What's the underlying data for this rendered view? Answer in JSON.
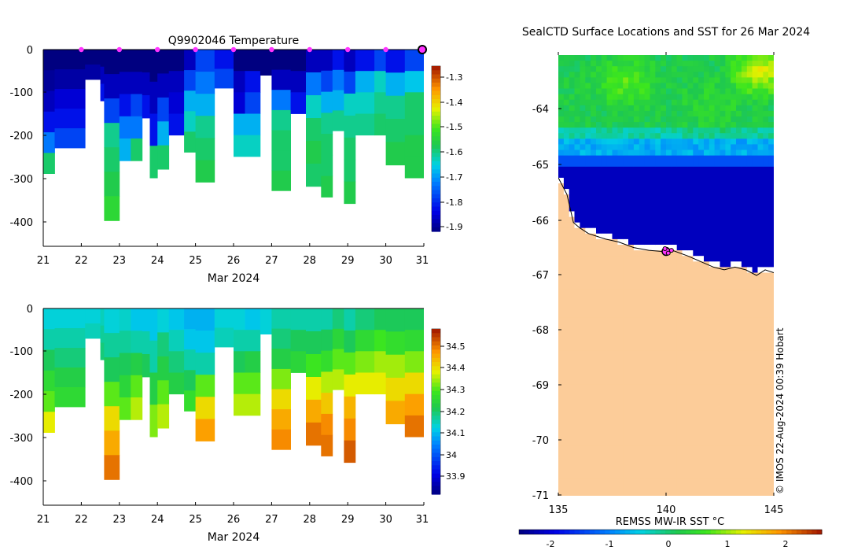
{
  "colors": {
    "background": "#ffffff",
    "axis": "#000000",
    "land": "#fccc99",
    "deep_blue": "#0033bb",
    "marker": "#ff33ff"
  },
  "temperature_panel": {
    "title": "Q9902046  Temperature",
    "xlabel": "Mar 2024",
    "x_ticks": [
      "21",
      "22",
      "23",
      "24",
      "25",
      "26",
      "27",
      "28",
      "29",
      "30",
      "31"
    ],
    "y_ticks": [
      "0",
      "-100",
      "-200",
      "-300",
      "-400"
    ],
    "colorbar_ticks": [
      "-1.3",
      "-1.4",
      "-1.5",
      "-1.6",
      "-1.7",
      "-1.8",
      "-1.9"
    ]
  },
  "salinity_panel": {
    "xlabel": "Mar 2024",
    "x_ticks": [
      "21",
      "22",
      "23",
      "24",
      "25",
      "26",
      "27",
      "28",
      "29",
      "30",
      "31"
    ],
    "y_ticks": [
      "0",
      "-100",
      "-200",
      "-300",
      "-400"
    ],
    "colorbar_ticks": [
      "34.5",
      "34.4",
      "34.3",
      "34.2",
      "34.1",
      "34",
      "33.9"
    ]
  },
  "map_panel": {
    "title": "SealCTD Surface Locations and SST for 26 Mar 2024",
    "y_ticks": [
      "-64",
      "-65",
      "-66",
      "-67",
      "-68",
      "-69",
      "-70",
      "-71"
    ],
    "x_ticks": [
      "135",
      "140",
      "145"
    ],
    "colorbar_label": "REMSS MW-IR SST °C",
    "colorbar_ticks": [
      "-2",
      "-1",
      "0",
      "1",
      "2"
    ],
    "credit": "© IMOS 22-Aug-2024 00:39 Hobart"
  },
  "chart_data": [
    {
      "type": "heatmap",
      "title": "Q9902046  Temperature",
      "xlabel": "Mar 2024",
      "ylabel": "",
      "x_unit": "day of March 2024",
      "xlim": [
        21,
        31
      ],
      "ylim": [
        -460,
        0
      ],
      "clim": [
        -1.95,
        -1.25
      ],
      "surface_marker_days": [
        22,
        23,
        24,
        25,
        26,
        27,
        28,
        29,
        30,
        31
      ],
      "profiles": [
        {
          "t": 21.0,
          "depth": 290,
          "v": [
            -1.95,
            -1.93,
            -1.9,
            -1.85,
            -1.75,
            -1.6
          ]
        },
        {
          "t": 21.3,
          "depth": 230,
          "v": [
            -1.95,
            -1.92,
            -1.88,
            -1.85,
            -1.8
          ]
        },
        {
          "t": 22.1,
          "depth": 70,
          "v": [
            -1.95,
            -1.92
          ]
        },
        {
          "t": 22.5,
          "depth": 120,
          "v": [
            -1.95,
            -1.9,
            -1.85
          ]
        },
        {
          "t": 22.6,
          "depth": 400,
          "v": [
            -1.95,
            -1.9,
            -1.8,
            -1.62,
            -1.6,
            -1.58,
            -1.55
          ]
        },
        {
          "t": 23.0,
          "depth": 260,
          "v": [
            -1.95,
            -1.9,
            -1.85,
            -1.75,
            -1.7
          ]
        },
        {
          "t": 23.3,
          "depth": 260,
          "v": [
            -1.95,
            -1.9,
            -1.8,
            -1.75,
            -1.6
          ]
        },
        {
          "t": 23.6,
          "depth": 160,
          "v": [
            -1.95,
            -1.9,
            -1.85
          ]
        },
        {
          "t": 23.8,
          "depth": 300,
          "v": [
            -1.95,
            -1.9,
            -1.85,
            -1.6
          ]
        },
        {
          "t": 24.0,
          "depth": 280,
          "v": [
            -1.95,
            -1.9,
            -1.8,
            -1.7,
            -1.6
          ]
        },
        {
          "t": 24.3,
          "depth": 200,
          "v": [
            -1.95,
            -1.9,
            -1.88,
            -1.85
          ]
        },
        {
          "t": 24.7,
          "depth": 240,
          "v": [
            -1.9,
            -1.8,
            -1.7,
            -1.65,
            -1.6
          ]
        },
        {
          "t": 25.0,
          "depth": 310,
          "v": [
            -1.8,
            -1.75,
            -1.7,
            -1.62,
            -1.6,
            -1.58
          ]
        },
        {
          "t": 25.5,
          "depth": 90,
          "v": [
            -1.85,
            -1.8
          ]
        },
        {
          "t": 26.0,
          "depth": 250,
          "v": [
            -1.95,
            -1.9,
            -1.88,
            -1.7,
            -1.65
          ]
        },
        {
          "t": 26.3,
          "depth": 250,
          "v": [
            -1.95,
            -1.85,
            -1.8,
            -1.7,
            -1.65
          ]
        },
        {
          "t": 26.7,
          "depth": 60,
          "v": [
            -1.95
          ]
        },
        {
          "t": 27.0,
          "depth": 330,
          "v": [
            -1.95,
            -1.9,
            -1.75,
            -1.62,
            -1.6,
            -1.6,
            -1.58
          ]
        },
        {
          "t": 27.5,
          "depth": 150,
          "v": [
            -1.95,
            -1.9,
            -1.85
          ]
        },
        {
          "t": 27.9,
          "depth": 320,
          "v": [
            -1.9,
            -1.75,
            -1.65,
            -1.6,
            -1.58,
            -1.6
          ]
        },
        {
          "t": 28.3,
          "depth": 345,
          "v": [
            -1.9,
            -1.8,
            -1.7,
            -1.62,
            -1.6,
            -1.6,
            -1.58
          ]
        },
        {
          "t": 28.6,
          "depth": 190,
          "v": [
            -1.85,
            -1.75,
            -1.7,
            -1.62
          ]
        },
        {
          "t": 28.9,
          "depth": 360,
          "v": [
            -1.9,
            -1.8,
            -1.65,
            -1.62,
            -1.6,
            -1.6,
            -1.58
          ]
        },
        {
          "t": 29.2,
          "depth": 200,
          "v": [
            -1.85,
            -1.7,
            -1.65,
            -1.62
          ]
        },
        {
          "t": 29.7,
          "depth": 200,
          "v": [
            -1.8,
            -1.65,
            -1.62,
            -1.6
          ]
        },
        {
          "t": 30.0,
          "depth": 270,
          "v": [
            -1.85,
            -1.7,
            -1.62,
            -1.6,
            -1.58
          ]
        },
        {
          "t": 30.5,
          "depth": 300,
          "v": [
            -1.8,
            -1.68,
            -1.6,
            -1.6,
            -1.58,
            -1.58
          ]
        }
      ]
    },
    {
      "type": "heatmap",
      "title": "",
      "xlabel": "Mar 2024",
      "ylabel": "",
      "x_unit": "day of March 2024",
      "xlim": [
        21,
        31
      ],
      "ylim": [
        -460,
        0
      ],
      "clim": [
        33.8,
        34.58
      ],
      "profiles": [
        {
          "t": 21.0,
          "depth": 290,
          "v": [
            34.12,
            34.15,
            34.2,
            34.25,
            34.3,
            34.38
          ]
        },
        {
          "t": 21.3,
          "depth": 230,
          "v": [
            34.12,
            34.15,
            34.18,
            34.22,
            34.25
          ]
        },
        {
          "t": 22.1,
          "depth": 70,
          "v": [
            34.12,
            34.14
          ]
        },
        {
          "t": 22.5,
          "depth": 120,
          "v": [
            34.14,
            34.16,
            34.18
          ]
        },
        {
          "t": 22.6,
          "depth": 400,
          "v": [
            34.12,
            34.16,
            34.2,
            34.3,
            34.4,
            34.45,
            34.5
          ]
        },
        {
          "t": 23.0,
          "depth": 260,
          "v": [
            34.13,
            34.16,
            34.2,
            34.24,
            34.3
          ]
        },
        {
          "t": 23.3,
          "depth": 260,
          "v": [
            34.1,
            34.15,
            34.22,
            34.3,
            34.35
          ]
        },
        {
          "t": 23.6,
          "depth": 160,
          "v": [
            34.1,
            34.15,
            34.2
          ]
        },
        {
          "t": 23.8,
          "depth": 300,
          "v": [
            34.1,
            34.15,
            34.22,
            34.32
          ]
        },
        {
          "t": 24.0,
          "depth": 280,
          "v": [
            34.12,
            34.18,
            34.22,
            34.3,
            34.35
          ]
        },
        {
          "t": 24.3,
          "depth": 200,
          "v": [
            34.1,
            34.14,
            34.18,
            34.22
          ]
        },
        {
          "t": 24.7,
          "depth": 240,
          "v": [
            34.08,
            34.1,
            34.15,
            34.2,
            34.26
          ]
        },
        {
          "t": 25.0,
          "depth": 310,
          "v": [
            34.08,
            34.1,
            34.15,
            34.3,
            34.4,
            34.46
          ]
        },
        {
          "t": 25.5,
          "depth": 90,
          "v": [
            34.12,
            34.14
          ]
        },
        {
          "t": 26.0,
          "depth": 250,
          "v": [
            34.12,
            34.15,
            34.2,
            34.3,
            34.35
          ]
        },
        {
          "t": 26.3,
          "depth": 250,
          "v": [
            34.1,
            34.15,
            34.22,
            34.3,
            34.35
          ]
        },
        {
          "t": 26.7,
          "depth": 60,
          "v": [
            34.12
          ]
        },
        {
          "t": 27.0,
          "depth": 330,
          "v": [
            34.15,
            34.18,
            34.22,
            34.32,
            34.4,
            34.45,
            34.48
          ]
        },
        {
          "t": 27.5,
          "depth": 150,
          "v": [
            34.15,
            34.2,
            34.24
          ]
        },
        {
          "t": 27.9,
          "depth": 320,
          "v": [
            34.15,
            34.2,
            34.28,
            34.38,
            34.45,
            34.5
          ]
        },
        {
          "t": 28.3,
          "depth": 345,
          "v": [
            34.15,
            34.2,
            34.26,
            34.35,
            34.42,
            34.48,
            34.5
          ]
        },
        {
          "t": 28.6,
          "depth": 190,
          "v": [
            34.18,
            34.24,
            34.3,
            34.35
          ]
        },
        {
          "t": 28.9,
          "depth": 360,
          "v": [
            34.15,
            34.2,
            34.3,
            34.38,
            34.44,
            34.48,
            34.52
          ]
        },
        {
          "t": 29.2,
          "depth": 200,
          "v": [
            34.18,
            34.25,
            34.32,
            34.38
          ]
        },
        {
          "t": 29.7,
          "depth": 200,
          "v": [
            34.2,
            34.28,
            34.34,
            34.38
          ]
        },
        {
          "t": 30.0,
          "depth": 270,
          "v": [
            34.2,
            34.26,
            34.34,
            34.4,
            34.45
          ]
        },
        {
          "t": 30.5,
          "depth": 300,
          "v": [
            34.2,
            34.25,
            34.32,
            34.4,
            34.46,
            34.5
          ]
        }
      ]
    },
    {
      "type": "heatmap",
      "title": "SealCTD Surface Locations and SST for 26 Mar 2024",
      "xlabel": "",
      "ylabel": "",
      "xlim": [
        135,
        145
      ],
      "ylim": [
        -71,
        -63.1
      ],
      "clim": [
        -2.2,
        2.6
      ],
      "colorbar_label": "REMSS MW-IR SST °C",
      "sst_bands": [
        {
          "lat_top": -63.1,
          "lat_bottom": -64.4,
          "sst": 0.35
        },
        {
          "lat_top": -64.4,
          "lat_bottom": -64.6,
          "sst": 0.0
        },
        {
          "lat_top": -64.6,
          "lat_bottom": -64.85,
          "sst": -0.5
        },
        {
          "lat_top": -64.85,
          "lat_bottom": -65.1,
          "sst": -1.1
        },
        {
          "lat_top": -65.1,
          "lat_bottom": -66.9,
          "sst": -1.85
        }
      ],
      "warm_patches": [
        {
          "lon": 144.3,
          "lat": -63.4,
          "sst": 1.4
        },
        {
          "lon": 138.0,
          "lat": -63.6,
          "sst": 0.9
        },
        {
          "lon": 142.0,
          "lat": -64.0,
          "sst": 0.6
        }
      ],
      "coastline": [
        [
          135.0,
          -65.3
        ],
        [
          135.4,
          -65.6
        ],
        [
          135.7,
          -66.1
        ],
        [
          136.0,
          -66.2
        ],
        [
          136.4,
          -66.3
        ],
        [
          136.8,
          -66.35
        ],
        [
          137.2,
          -66.4
        ],
        [
          137.8,
          -66.45
        ],
        [
          138.5,
          -66.55
        ],
        [
          139.2,
          -66.6
        ],
        [
          139.8,
          -66.62
        ],
        [
          140.3,
          -66.6
        ],
        [
          141.0,
          -66.7
        ],
        [
          141.6,
          -66.8
        ],
        [
          142.2,
          -66.9
        ],
        [
          142.7,
          -66.95
        ],
        [
          143.2,
          -66.9
        ],
        [
          143.7,
          -66.95
        ],
        [
          144.2,
          -67.05
        ],
        [
          144.6,
          -66.95
        ],
        [
          145.0,
          -67.0
        ]
      ],
      "ctd_locations": [
        {
          "lon": 140.0,
          "lat": -66.62
        },
        {
          "lon": 139.95,
          "lat": -66.57
        },
        {
          "lon": 140.1,
          "lat": -66.65
        },
        {
          "lon": 140.25,
          "lat": -66.6
        }
      ]
    }
  ]
}
